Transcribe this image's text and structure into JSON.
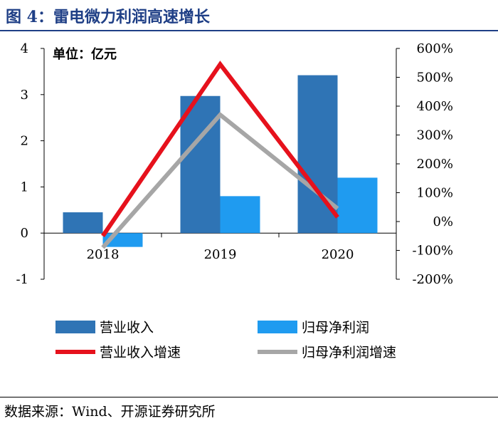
{
  "header": {
    "title": "图 4：雷电微力利润高速增长"
  },
  "footer": {
    "source": "数据来源：Wind、开源证券研究所"
  },
  "chart_data": {
    "type": "bar+line",
    "unit_label": "单位：亿元",
    "categories": [
      "2018",
      "2019",
      "2020"
    ],
    "left_axis": {
      "ylim": [
        -1,
        4
      ],
      "ticks": [
        -1,
        0,
        1,
        2,
        3,
        4
      ],
      "tick_labels": [
        "-1",
        "0",
        "1",
        "2",
        "3",
        "4"
      ]
    },
    "right_axis": {
      "ylim": [
        -200,
        600
      ],
      "ticks": [
        -200,
        -100,
        0,
        100,
        200,
        300,
        400,
        500,
        600
      ],
      "tick_labels": [
        "-200%",
        "-100%",
        "0%",
        "100%",
        "200%",
        "300%",
        "400%",
        "500%",
        "600%"
      ]
    },
    "series": [
      {
        "name": "营业收入",
        "type": "bar",
        "axis": "left",
        "color": "#2f74b5",
        "values": [
          0.45,
          2.97,
          3.42
        ]
      },
      {
        "name": "归母净利润",
        "type": "bar",
        "axis": "left",
        "color": "#1f9bf0",
        "values": [
          -0.3,
          0.8,
          1.2
        ]
      },
      {
        "name": "营业收入增速",
        "type": "line",
        "axis": "right",
        "color": "#e6111c",
        "values": [
          -50,
          545,
          15
        ]
      },
      {
        "name": "归母净利润增速",
        "type": "line",
        "axis": "right",
        "color": "#a6a6a6",
        "values": [
          -90,
          370,
          45
        ]
      }
    ],
    "legend_placement": "bottom"
  }
}
